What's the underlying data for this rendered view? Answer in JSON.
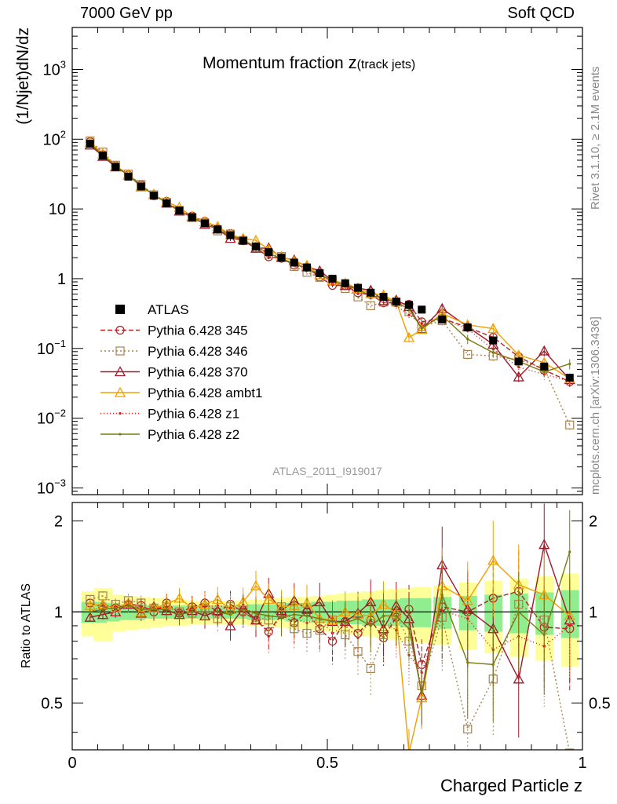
{
  "header": {
    "energy_label": "7000 GeV pp",
    "process_label": "Soft QCD"
  },
  "side_text": {
    "rivet": "Rivet 3.1.10, ≥ 2.1M events",
    "url": "mcplots.cern.ch [arXiv:1306.3436]"
  },
  "chart_data": {
    "type": "line",
    "title_main": "Momentum fraction ",
    "title_var": "z",
    "title_sub": "(track jets)",
    "analysis_tag": "ATLAS_2011_I919017",
    "xlabel": "Charged Particle z",
    "ylabel_top": "(1/Njet)dN/dz",
    "ylabel_ratio": "Ratio to ATLAS",
    "xlim": [
      0,
      1
    ],
    "ylim_top": [
      0.0008,
      4000
    ],
    "ylim_ratio": [
      0.35,
      2.3
    ],
    "y_scale_top": "log",
    "y_scale_ratio": "log",
    "x_ticks": [
      "0",
      "0.5",
      "1"
    ],
    "y_ticks_top": [
      {
        "v": 1000,
        "base": "10",
        "exp": "3"
      },
      {
        "v": 100,
        "base": "10",
        "exp": "2"
      },
      {
        "v": 10,
        "base": "10",
        "exp": ""
      },
      {
        "v": 1,
        "base": "1",
        "exp": ""
      },
      {
        "v": 0.1,
        "base": "10",
        "exp": "−1"
      },
      {
        "v": 0.01,
        "base": "10",
        "exp": "−2"
      },
      {
        "v": 0.001,
        "base": "10",
        "exp": "−3"
      }
    ],
    "y_ticks_ratio": [
      "2",
      "1",
      "0.5"
    ],
    "legend_position": "middle-left",
    "x": [
      0.035,
      0.06,
      0.085,
      0.11,
      0.135,
      0.16,
      0.185,
      0.21,
      0.235,
      0.26,
      0.285,
      0.31,
      0.335,
      0.36,
      0.385,
      0.41,
      0.435,
      0.46,
      0.485,
      0.51,
      0.535,
      0.56,
      0.585,
      0.61,
      0.635,
      0.66,
      0.685,
      0.725,
      0.775,
      0.825,
      0.875,
      0.925,
      0.975
    ],
    "data": {
      "name": "ATLAS",
      "color": "#000000",
      "values": [
        86,
        58,
        40,
        29,
        21,
        15.5,
        12,
        9.5,
        7.6,
        6.2,
        5.1,
        4.2,
        3.5,
        2.9,
        2.4,
        2.0,
        1.7,
        1.45,
        1.2,
        1.0,
        0.86,
        0.74,
        0.63,
        0.55,
        0.47,
        0.42,
        0.36,
        0.26,
        0.2,
        0.13,
        0.065,
        0.055,
        0.038
      ],
      "ratio_band_inner": [
        0.08,
        0.08,
        0.07,
        0.06,
        0.06,
        0.05,
        0.05,
        0.05,
        0.05,
        0.05,
        0.05,
        0.05,
        0.05,
        0.06,
        0.06,
        0.06,
        0.07,
        0.07,
        0.08,
        0.08,
        0.09,
        0.09,
        0.1,
        0.1,
        0.1,
        0.11,
        0.11,
        0.12,
        0.13,
        0.14,
        0.15,
        0.16,
        0.18
      ],
      "ratio_band_outer": [
        0.17,
        0.2,
        0.14,
        0.13,
        0.12,
        0.11,
        0.1,
        0.1,
        0.09,
        0.09,
        0.09,
        0.09,
        0.09,
        0.1,
        0.1,
        0.11,
        0.12,
        0.12,
        0.13,
        0.14,
        0.15,
        0.16,
        0.17,
        0.18,
        0.19,
        0.2,
        0.21,
        0.22,
        0.25,
        0.27,
        0.29,
        0.31,
        0.34
      ]
    },
    "series": [
      {
        "name": "Pythia 6.428 345",
        "color": "#b22222",
        "dash": "6,3",
        "marker": "circle",
        "ratio": [
          1.07,
          1.04,
          1.03,
          1.06,
          1.05,
          1.0,
          1.07,
          0.99,
          1.04,
          1.07,
          1.0,
          1.06,
          1.0,
          0.94,
          0.86,
          0.98,
          0.92,
          1.0,
          0.88,
          0.8,
          0.93,
          0.85,
          0.94,
          0.82,
          0.96,
          1.02,
          0.67,
          1.04,
          1.0,
          1.11,
          1.17,
          0.89,
          0.88
        ]
      },
      {
        "name": "Pythia 6.428 346",
        "color": "#a88350",
        "dash": "2,3",
        "marker": "square",
        "ratio": [
          1.1,
          1.13,
          1.06,
          1.09,
          1.07,
          1.03,
          1.04,
          1.0,
          0.99,
          1.02,
          0.95,
          1.04,
          1.01,
          0.96,
          0.94,
          1.04,
          0.88,
          0.85,
          0.87,
          0.94,
          0.84,
          0.74,
          0.65,
          0.84,
          0.98,
          0.8,
          0.57,
          0.96,
          0.41,
          0.6,
          1.06,
          0.94,
          0.21
        ]
      },
      {
        "name": "Pythia 6.428 370",
        "color": "#a0182a",
        "dash": "",
        "marker": "triangle",
        "ratio": [
          0.96,
          0.98,
          1.0,
          1.06,
          0.99,
          1.04,
          1.01,
          0.98,
          1.01,
          0.97,
          1.01,
          0.9,
          1.03,
          0.94,
          1.15,
          1.01,
          1.09,
          1.02,
          1.08,
          0.93,
          0.93,
          0.99,
          1.08,
          0.88,
          1.05,
          0.95,
          0.53,
          1.43,
          1.02,
          0.88,
          0.6,
          1.67,
          0.94
        ]
      },
      {
        "name": "Pythia 6.428 ambt1",
        "color": "#f0a000",
        "dash": "",
        "marker": "triangle",
        "ratio": [
          1.05,
          1.06,
          1.03,
          1.07,
          1.0,
          1.03,
          1.06,
          1.11,
          1.03,
          1.06,
          1.1,
          1.02,
          1.08,
          1.22,
          1.1,
          1.04,
          1.05,
          1.07,
          0.95,
          0.94,
          1.0,
          0.98,
          0.97,
          1.06,
          0.99,
          0.34,
          0.52,
          1.22,
          1.09,
          1.48,
          1.23,
          1.14,
          0.97
        ]
      },
      {
        "name": "Pythia 6.428 z1",
        "color": "#e01010",
        "dash": "1,3",
        "marker": "dot",
        "ratio": [
          1.0,
          1.05,
          1.04,
          1.05,
          1.04,
          1.02,
          1.04,
          1.0,
          1.03,
          1.04,
          1.05,
          1.03,
          1.02,
          1.0,
          0.83,
          0.99,
          0.95,
          0.92,
          0.95,
          0.85,
          0.9,
          0.82,
          0.94,
          0.93,
          0.87,
          0.72,
          0.63,
          1.01,
          0.95,
          0.75,
          0.83,
          0.77,
          0.9
        ]
      },
      {
        "name": "Pythia 6.428 z2",
        "color": "#7a7a10",
        "dash": "",
        "marker": "dot",
        "ratio": [
          1.0,
          1.02,
          1.03,
          1.05,
          1.02,
          1.02,
          1.02,
          0.98,
          1.0,
          1.0,
          1.0,
          0.98,
          1.02,
          0.99,
          0.97,
          0.96,
          0.98,
          0.97,
          0.95,
          0.93,
          0.92,
          0.95,
          0.9,
          0.97,
          0.97,
          0.88,
          0.54,
          1.14,
          0.68,
          0.67,
          1.0,
          0.84,
          1.58
        ]
      }
    ]
  }
}
